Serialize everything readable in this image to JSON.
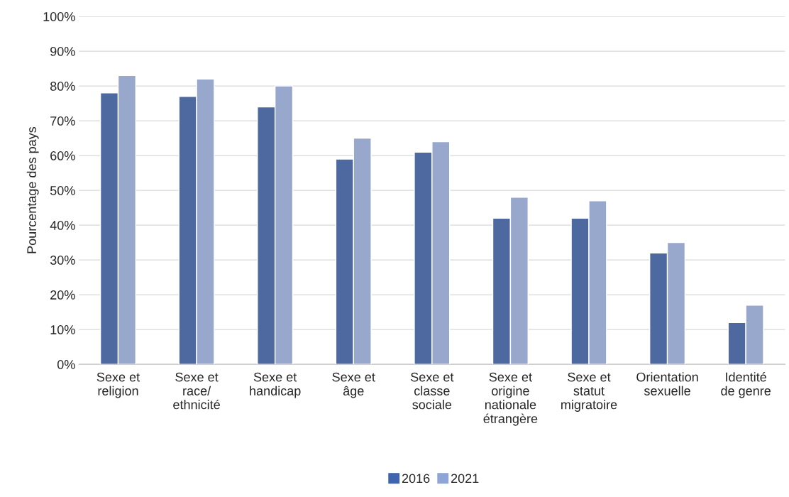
{
  "chart_data": {
    "type": "bar",
    "ylabel": "Pourcentage des pays",
    "categories": [
      "Sexe et\nreligion",
      "Sexe et\nrace/\nethnicité",
      "Sexe et\nhandicap",
      "Sexe et\nâge",
      "Sexe et\nclasse\nsociale",
      "Sexe et\norigine\nnationale\nétrangère",
      "Sexe et\nstatut\nmigratoire",
      "Orientation\nsexuelle",
      "Identité\nde genre"
    ],
    "series": [
      {
        "name": "2016",
        "color": "#3f65ae",
        "values": [
          78,
          77,
          74,
          59,
          61,
          42,
          42,
          32,
          12
        ]
      },
      {
        "name": "2021",
        "color": "#8fa5d6",
        "values": [
          83,
          82,
          80,
          65,
          64,
          48,
          47,
          35,
          17
        ]
      }
    ],
    "ylim": [
      0,
      100
    ],
    "yticks": [
      {
        "value": 0,
        "label": "0%"
      },
      {
        "value": 10,
        "label": "10%"
      },
      {
        "value": 20,
        "label": "20%"
      },
      {
        "value": 30,
        "label": "30%"
      },
      {
        "value": 40,
        "label": "40%"
      },
      {
        "value": 50,
        "label": "50%"
      },
      {
        "value": 60,
        "label": "60%"
      },
      {
        "value": 70,
        "label": "70%"
      },
      {
        "value": 80,
        "label": "80%"
      },
      {
        "value": 90,
        "label": "90%"
      },
      {
        "value": 100,
        "label": "100%"
      }
    ],
    "grid": "y",
    "legend": "bottom"
  }
}
